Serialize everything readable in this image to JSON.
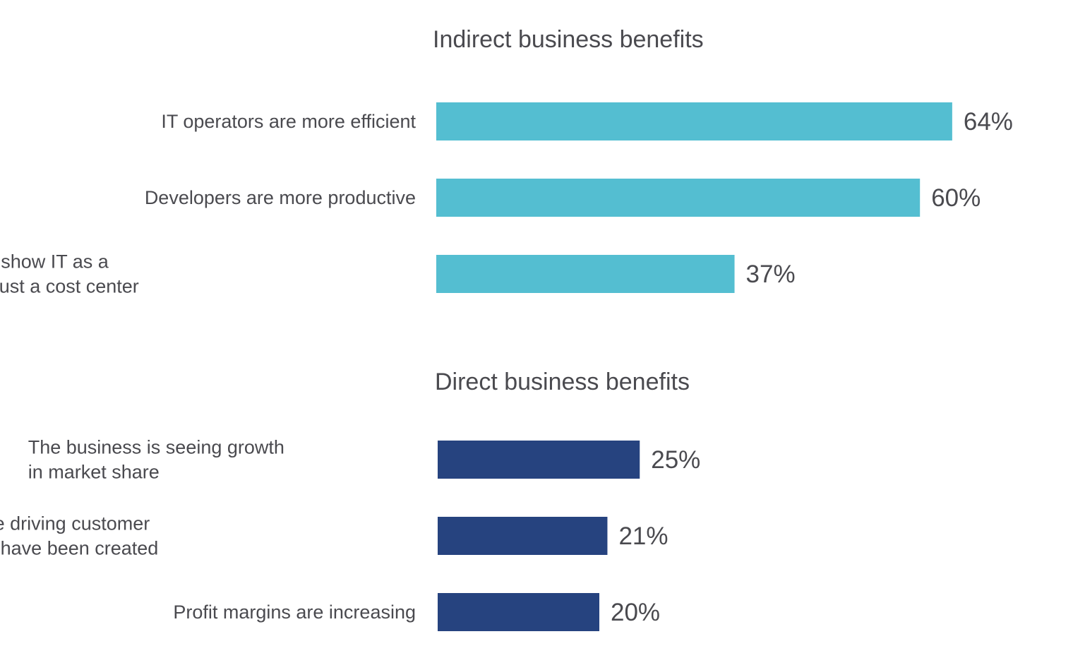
{
  "colors": {
    "indirect": "#54BED1",
    "direct": "#26437F",
    "text": "#4A4A4F"
  },
  "chart_data": [
    {
      "type": "bar",
      "orientation": "horizontal",
      "title": "Indirect business benefits",
      "categories": [
        [
          "IT operators are more efficient"
        ],
        [
          "Developers are more productive"
        ],
        [
          "Helps IT leadership show IT as a",
          "revenue driver, not just a cost center"
        ]
      ],
      "values": [
        64,
        60,
        37
      ],
      "value_labels": [
        "64%",
        "60%",
        "37%"
      ],
      "color": "#54BED1"
    },
    {
      "type": "bar",
      "orientation": "horizontal",
      "title": "Direct business benefits",
      "categories": [
        [
          "The business is seeing growth",
          "in market share"
        ],
        [
          "New revenue driving customer",
          "experiences have been created"
        ],
        [
          "Profit margins are increasing"
        ]
      ],
      "values": [
        25,
        21,
        20
      ],
      "value_labels": [
        "25%",
        "21%",
        "20%"
      ],
      "color": "#26437F"
    }
  ]
}
